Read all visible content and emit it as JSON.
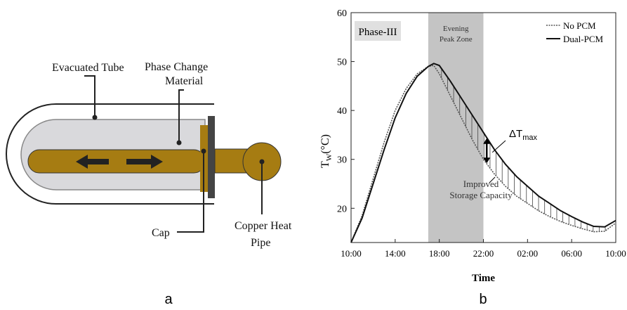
{
  "diagram": {
    "panel_label": "a",
    "labels": {
      "tube": [
        "Evacuated Tube"
      ],
      "pcm": [
        "Phase Change",
        "Material"
      ],
      "cap": [
        "Cap"
      ],
      "pipe": [
        "Copper Heat",
        "Pipe"
      ]
    }
  },
  "chart_data": {
    "type": "line",
    "panel_label": "b",
    "xlabel": "Time",
    "ylabel": [
      "T",
      "W",
      "(°C)"
    ],
    "x": [
      0,
      1,
      2,
      3,
      4,
      5,
      6,
      7,
      7.5,
      8,
      9,
      10,
      11,
      12,
      13,
      14,
      15,
      16,
      17,
      18,
      19,
      20,
      21,
      22,
      23,
      24
    ],
    "series": [
      {
        "name": "No PCM",
        "color": "#555555",
        "dash": "2 1.5",
        "values": [
          13,
          18.5,
          26,
          33.5,
          40,
          44.5,
          47.5,
          49,
          49.2,
          47.5,
          43,
          38.5,
          34,
          30,
          27,
          24.5,
          22.5,
          21,
          19.5,
          18.3,
          17.3,
          16.5,
          15.8,
          15.2,
          15.3,
          17
        ]
      },
      {
        "name": "Dual-PCM",
        "color": "#111111",
        "dash": "none",
        "values": [
          13,
          18,
          25,
          32,
          38.5,
          43.5,
          47,
          49,
          49.6,
          49.2,
          46,
          42.5,
          39,
          35.5,
          32,
          29,
          26.5,
          24.5,
          22.5,
          21,
          19.5,
          18.3,
          17.2,
          16.3,
          16.2,
          17.5
        ]
      }
    ],
    "xlim": [
      0,
      24
    ],
    "xticks": [
      {
        "value": 0,
        "label": "10:00"
      },
      {
        "value": 4,
        "label": "14:00"
      },
      {
        "value": 8,
        "label": "18:00"
      },
      {
        "value": 12,
        "label": "22:00"
      },
      {
        "value": 16,
        "label": "02:00"
      },
      {
        "value": 20,
        "label": "06:00"
      },
      {
        "value": 24,
        "label": "10:00"
      }
    ],
    "ylim": [
      13,
      60
    ],
    "yticks": [
      20,
      30,
      40,
      50,
      60
    ],
    "phase_label": "Phase-III",
    "peak_zone": {
      "x": [
        7,
        12
      ],
      "label": [
        "Evening",
        "Peak Zone"
      ]
    },
    "delta": {
      "x": 12.3,
      "y": [
        34.3,
        29.2
      ],
      "label": [
        "ΔT",
        "max"
      ]
    },
    "storage_label": [
      "Improved",
      "Storage Capacity"
    ],
    "legend": "upper right"
  }
}
